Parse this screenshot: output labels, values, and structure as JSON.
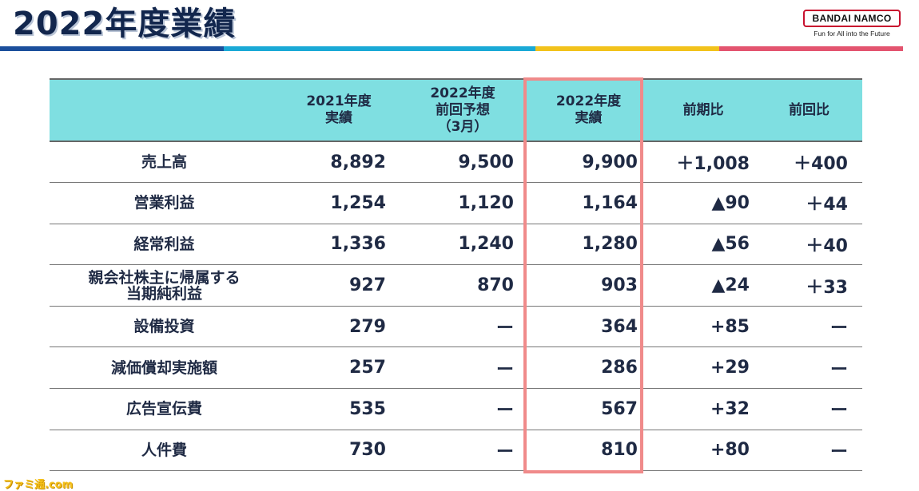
{
  "title": "2022年度業績",
  "logo": {
    "brand": "BANDAI NAMCO",
    "tagline": "Fun for All into the Future"
  },
  "stripe_colors": [
    "#1b4f9c",
    "#1aa9d6",
    "#f2c21b",
    "#e3546f"
  ],
  "highlight_color": "#f08a8a",
  "header_color": "#7fdfe1",
  "table": {
    "headers": [
      "",
      "2021年度\n実績",
      "2022年度\n前回予想\n（3月）",
      "2022年度\n実績",
      "前期比",
      "前回比"
    ],
    "rows": [
      {
        "label": "売上高",
        "c1": "8,892",
        "c2": "9,500",
        "c3": "9,900",
        "c4": "＋1,008",
        "c5": "＋400"
      },
      {
        "label": "営業利益",
        "c1": "1,254",
        "c2": "1,120",
        "c3": "1,164",
        "c4": "▲90",
        "c5": "＋44"
      },
      {
        "label": "経常利益",
        "c1": "1,336",
        "c2": "1,240",
        "c3": "1,280",
        "c4": "▲56",
        "c5": "＋40"
      },
      {
        "label": "親会社株主に帰属する\n当期純利益",
        "c1": "927",
        "c2": "870",
        "c3": "903",
        "c4": "▲24",
        "c5": "＋33"
      },
      {
        "label": "設備投資",
        "c1": "279",
        "c2": "ー",
        "c3": "364",
        "c4": "+85",
        "c5": "ー"
      },
      {
        "label": "減価償却実施額",
        "c1": "257",
        "c2": "ー",
        "c3": "286",
        "c4": "+29",
        "c5": "ー"
      },
      {
        "label": "広告宣伝費",
        "c1": "535",
        "c2": "ー",
        "c3": "567",
        "c4": "+32",
        "c5": "ー"
      },
      {
        "label": "人件費",
        "c1": "730",
        "c2": "ー",
        "c3": "810",
        "c4": "+80",
        "c5": "ー"
      }
    ]
  },
  "watermark": "ファミ通.com"
}
